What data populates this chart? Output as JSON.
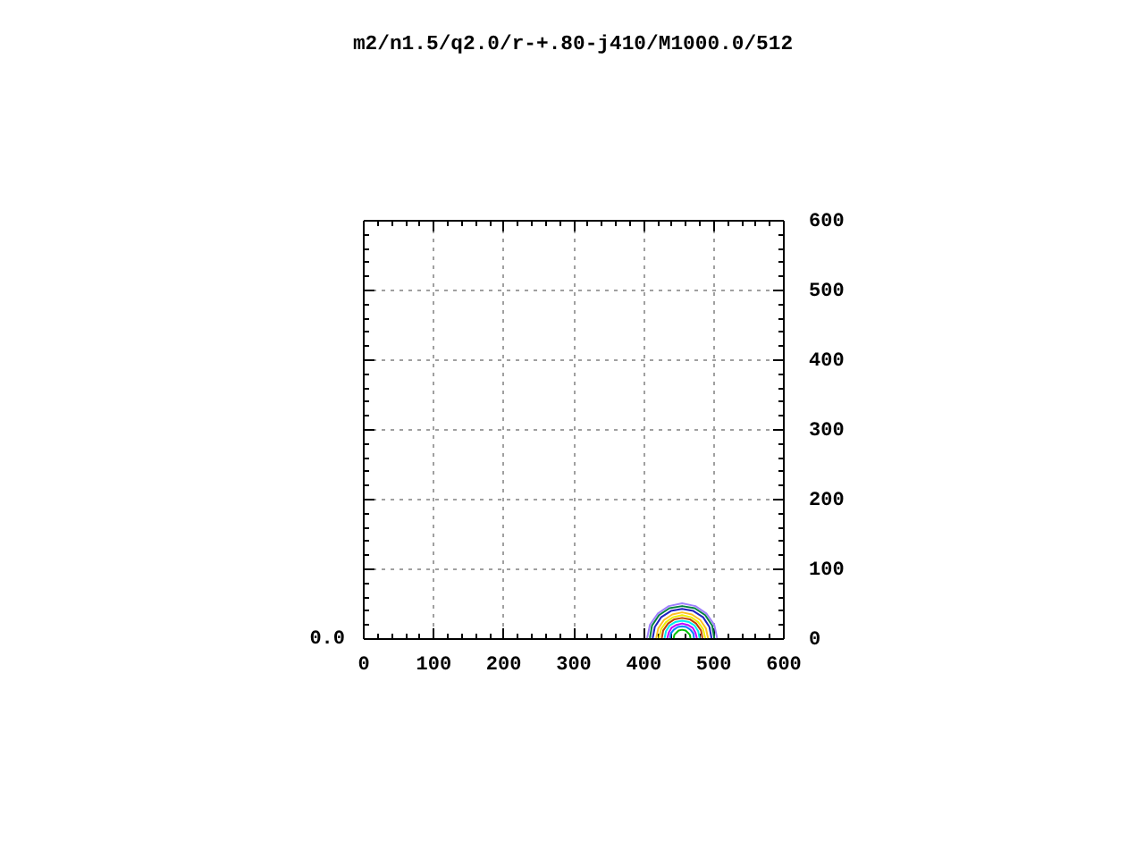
{
  "chart_data": {
    "type": "line",
    "title": "m2/n1.5/q2.0/r-+.80-j410/M1000.0/512",
    "annotations": [
      "0.0"
    ],
    "xlim": [
      0,
      600
    ],
    "ylim": [
      0,
      600
    ],
    "xticks": [
      0,
      {
        "value": 20,
        "label": null
      },
      {
        "value": 40,
        "label": null
      },
      {
        "value": 60,
        "label": null
      },
      {
        "value": 80,
        "label": null
      },
      100,
      {
        "value": 120,
        "label": null
      },
      {
        "value": 140,
        "label": null
      },
      {
        "value": 160,
        "label": null
      },
      {
        "value": 180,
        "label": null
      },
      200,
      {
        "value": 220,
        "label": null
      },
      {
        "value": 240,
        "label": null
      },
      {
        "value": 260,
        "label": null
      },
      {
        "value": 280,
        "label": null
      },
      300,
      {
        "value": 320,
        "label": null
      },
      {
        "value": 340,
        "label": null
      },
      {
        "value": 360,
        "label": null
      },
      {
        "value": 380,
        "label": null
      },
      400,
      {
        "value": 420,
        "label": null
      },
      {
        "value": 440,
        "label": null
      },
      {
        "value": 460,
        "label": null
      },
      {
        "value": 480,
        "label": null
      },
      500,
      {
        "value": 520,
        "label": null
      },
      {
        "value": 540,
        "label": null
      },
      {
        "value": 560,
        "label": null
      },
      {
        "value": 580,
        "label": null
      },
      600
    ],
    "yticks": [
      0,
      {
        "value": 20,
        "label": null
      },
      {
        "value": 40,
        "label": null
      },
      {
        "value": 60,
        "label": null
      },
      {
        "value": 80,
        "label": null
      },
      100,
      {
        "value": 120,
        "label": null
      },
      {
        "value": 140,
        "label": null
      },
      {
        "value": 160,
        "label": null
      },
      {
        "value": 180,
        "label": null
      },
      200,
      {
        "value": 220,
        "label": null
      },
      {
        "value": 240,
        "label": null
      },
      {
        "value": 260,
        "label": null
      },
      {
        "value": 280,
        "label": null
      },
      300,
      {
        "value": 320,
        "label": null
      },
      {
        "value": 340,
        "label": null
      },
      {
        "value": 360,
        "label": null
      },
      {
        "value": 380,
        "label": null
      },
      400,
      {
        "value": 420,
        "label": null
      },
      {
        "value": 440,
        "label": null
      },
      {
        "value": 460,
        "label": null
      },
      {
        "value": 480,
        "label": null
      },
      500,
      {
        "value": 520,
        "label": null
      },
      {
        "value": 540,
        "label": null
      },
      {
        "value": 560,
        "label": null
      },
      {
        "value": 580,
        "label": null
      },
      600
    ],
    "grid": true,
    "series": [
      {
        "color": "#a080ff",
        "x": [
          406,
          410,
          421,
          437,
          456,
          475,
          491,
          502,
          506
        ],
        "values": [
          0,
          19,
          35,
          46,
          50,
          46,
          35,
          19,
          0
        ]
      },
      {
        "color": "#008040",
        "x": [
          410,
          413,
          423,
          438,
          456,
          474,
          489,
          499,
          502
        ],
        "values": [
          0,
          18,
          33,
          43,
          46,
          43,
          33,
          18,
          0
        ]
      },
      {
        "color": "#2020c0",
        "x": [
          414,
          417,
          426,
          440,
          456,
          472,
          486,
          495,
          498
        ],
        "values": [
          0,
          16,
          30,
          39,
          42,
          39,
          30,
          16,
          0
        ]
      },
      {
        "color": "#ffc020",
        "x": [
          419,
          422,
          430,
          442,
          456,
          470,
          482,
          490,
          493
        ],
        "values": [
          0,
          14,
          26,
          34,
          37,
          34,
          26,
          14,
          0
        ]
      },
      {
        "color": "#eeee00",
        "x": [
          423,
          426,
          433,
          443,
          456,
          469,
          479,
          486,
          489
        ],
        "values": [
          0,
          13,
          23,
          30,
          33,
          30,
          23,
          13,
          0
        ]
      },
      {
        "color": "#c04000",
        "x": [
          427,
          429,
          436,
          445,
          456,
          467,
          476,
          483,
          485
        ],
        "values": [
          0,
          11,
          21,
          27,
          29,
          27,
          21,
          11,
          0
        ]
      },
      {
        "color": "#00eeee",
        "x": [
          431,
          433,
          438,
          446,
          456,
          466,
          474,
          479,
          481
        ],
        "values": [
          0,
          10,
          18,
          23,
          25,
          23,
          18,
          10,
          0
        ]
      },
      {
        "color": "#c000ff",
        "x": [
          435,
          437,
          441,
          448,
          456,
          464,
          471,
          475,
          477
        ],
        "values": [
          0,
          8,
          15,
          19,
          21,
          19,
          15,
          8,
          0
        ]
      },
      {
        "color": "#0080ff",
        "x": [
          439,
          440,
          444,
          450,
          456,
          462,
          468,
          472,
          473
        ],
        "values": [
          0,
          7,
          12,
          16,
          17,
          16,
          12,
          7,
          0
        ]
      },
      {
        "color": "#00c000",
        "x": [
          444,
          445,
          448,
          451,
          456,
          461,
          464,
          467,
          468
        ],
        "values": [
          0,
          5,
          8,
          11,
          12,
          11,
          8,
          5,
          0
        ]
      }
    ]
  }
}
